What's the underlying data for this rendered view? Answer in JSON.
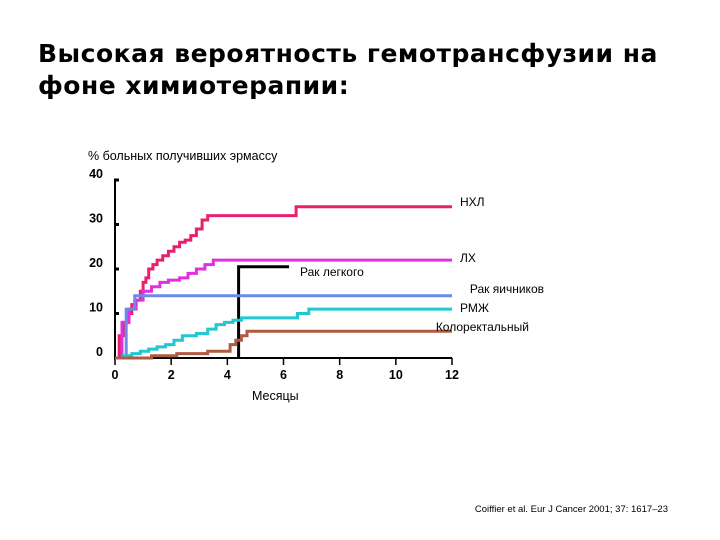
{
  "slide": {
    "title": "Высокая вероятность гемотрансфузии на\nфоне химиотерапии:",
    "citation": "Coiffier et al. Eur J Cancer 2001; 37: 1617–23"
  },
  "chart_data": {
    "type": "line",
    "ylabel": "% больных получивших эрмассу",
    "xlabel": "Месяцы",
    "xlim": [
      0,
      12
    ],
    "ylim": [
      0,
      40
    ],
    "x_ticks": [
      "0",
      "2",
      "4",
      "6",
      "8",
      "10",
      "12"
    ],
    "y_ticks": [
      "0",
      "10",
      "20",
      "30",
      "40"
    ],
    "grid": false,
    "step": true,
    "series": [
      {
        "name": "НХЛ",
        "color": "#e8206e",
        "points": [
          [
            0,
            0
          ],
          [
            0.15,
            5
          ],
          [
            0.3,
            8
          ],
          [
            0.45,
            10
          ],
          [
            0.6,
            12
          ],
          [
            0.75,
            13
          ],
          [
            0.9,
            15
          ],
          [
            1,
            17
          ],
          [
            1.1,
            18
          ],
          [
            1.2,
            20
          ],
          [
            1.35,
            21
          ],
          [
            1.5,
            22
          ],
          [
            1.7,
            23
          ],
          [
            1.9,
            24
          ],
          [
            2.1,
            25
          ],
          [
            2.3,
            26
          ],
          [
            2.5,
            26.5
          ],
          [
            2.7,
            27.5
          ],
          [
            2.9,
            29
          ],
          [
            3.1,
            31
          ],
          [
            3.3,
            32
          ],
          [
            4.5,
            32
          ],
          [
            6.3,
            32
          ],
          [
            6.45,
            34
          ],
          [
            12,
            34
          ]
        ]
      },
      {
        "name": "ЛХ",
        "color": "#e030e0",
        "points": [
          [
            0,
            0
          ],
          [
            0.25,
            8
          ],
          [
            0.5,
            11
          ],
          [
            0.75,
            13
          ],
          [
            1,
            15
          ],
          [
            1.3,
            16
          ],
          [
            1.6,
            17
          ],
          [
            1.9,
            17.5
          ],
          [
            2.3,
            18
          ],
          [
            2.6,
            19
          ],
          [
            2.9,
            20
          ],
          [
            3.2,
            21
          ],
          [
            3.5,
            22
          ],
          [
            12,
            22
          ]
        ]
      },
      {
        "name": "Рак легкого",
        "color": "#000000",
        "points": [
          [
            4.4,
            0
          ],
          [
            4.4,
            20.5
          ],
          [
            6.2,
            20.5
          ]
        ]
      },
      {
        "name": "Рак яичников",
        "color": "#6a8ce6",
        "points": [
          [
            0,
            0
          ],
          [
            0.4,
            11
          ],
          [
            0.7,
            14
          ],
          [
            12,
            14
          ]
        ]
      },
      {
        "name": "РМЖ",
        "color": "#20c8d2",
        "points": [
          [
            0,
            0
          ],
          [
            0.3,
            0.5
          ],
          [
            0.6,
            1
          ],
          [
            0.9,
            1.5
          ],
          [
            1.2,
            2
          ],
          [
            1.5,
            2.5
          ],
          [
            1.8,
            3
          ],
          [
            2.1,
            4
          ],
          [
            2.4,
            5
          ],
          [
            2.9,
            5.5
          ],
          [
            3.3,
            6.5
          ],
          [
            3.6,
            7.5
          ],
          [
            3.9,
            8
          ],
          [
            4.2,
            8.5
          ],
          [
            4.5,
            9
          ],
          [
            6.3,
            9
          ],
          [
            6.5,
            10
          ],
          [
            6.9,
            11
          ],
          [
            12,
            11
          ]
        ]
      },
      {
        "name": "Колоректальный",
        "color": "#b05a40",
        "points": [
          [
            0,
            0
          ],
          [
            1.3,
            0.5
          ],
          [
            2.2,
            1
          ],
          [
            3.3,
            1.5
          ],
          [
            4.1,
            3
          ],
          [
            4.3,
            4
          ],
          [
            4.5,
            5
          ],
          [
            4.7,
            6
          ],
          [
            12,
            6
          ]
        ]
      }
    ]
  }
}
